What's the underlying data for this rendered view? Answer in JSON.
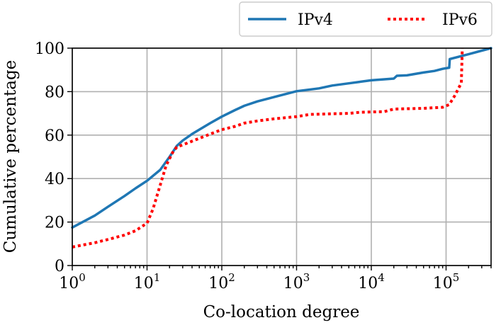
{
  "chart_data": {
    "type": "line",
    "title": "",
    "xlabel": "Co-location degree",
    "ylabel": "Cumulative percentage",
    "xscale": "log",
    "xlim": [
      1,
      400000
    ],
    "ylim": [
      0,
      100
    ],
    "grid": true,
    "legend_position": "top-right, outside above plot",
    "x_ticks": [
      {
        "base": "10",
        "exp": "0",
        "value": 1
      },
      {
        "base": "10",
        "exp": "1",
        "value": 10
      },
      {
        "base": "10",
        "exp": "2",
        "value": 100
      },
      {
        "base": "10",
        "exp": "3",
        "value": 1000
      },
      {
        "base": "10",
        "exp": "4",
        "value": 10000
      },
      {
        "base": "10",
        "exp": "5",
        "value": 100000
      }
    ],
    "y_ticks": [
      "0",
      "20",
      "40",
      "60",
      "80",
      "100"
    ],
    "series": [
      {
        "name": "IPv4",
        "color": "#1f77b4",
        "style": "solid",
        "points": [
          [
            1,
            17.5
          ],
          [
            2,
            23
          ],
          [
            3,
            27
          ],
          [
            5,
            32
          ],
          [
            7,
            35.5
          ],
          [
            10,
            39
          ],
          [
            15,
            44
          ],
          [
            20,
            50
          ],
          [
            25,
            55
          ],
          [
            30,
            57.5
          ],
          [
            40,
            60.5
          ],
          [
            50,
            62.5
          ],
          [
            70,
            65.5
          ],
          [
            100,
            68.5
          ],
          [
            150,
            71.5
          ],
          [
            200,
            73.5
          ],
          [
            300,
            75.5
          ],
          [
            500,
            77.5
          ],
          [
            700,
            78.8
          ],
          [
            1000,
            80.2
          ],
          [
            2000,
            81.5
          ],
          [
            3000,
            82.8
          ],
          [
            5000,
            83.8
          ],
          [
            7000,
            84.5
          ],
          [
            10000,
            85.2
          ],
          [
            20000,
            86
          ],
          [
            22000,
            87.3
          ],
          [
            30000,
            87.5
          ],
          [
            50000,
            88.8
          ],
          [
            70000,
            89.5
          ],
          [
            90000,
            90.5
          ],
          [
            110000,
            91
          ],
          [
            112000,
            95
          ],
          [
            200000,
            97.2
          ],
          [
            400000,
            100
          ]
        ]
      },
      {
        "name": "IPv6",
        "color": "#ff0000",
        "style": "dotted",
        "points": [
          [
            1,
            8.5
          ],
          [
            2,
            10.5
          ],
          [
            3,
            12
          ],
          [
            5,
            14
          ],
          [
            7,
            16
          ],
          [
            10,
            19.5
          ],
          [
            12,
            26
          ],
          [
            15,
            37
          ],
          [
            18,
            46
          ],
          [
            22,
            52
          ],
          [
            25,
            54.5
          ],
          [
            30,
            55.5
          ],
          [
            50,
            58.5
          ],
          [
            70,
            60.5
          ],
          [
            100,
            62.5
          ],
          [
            150,
            64
          ],
          [
            200,
            65.5
          ],
          [
            300,
            66.5
          ],
          [
            500,
            67.5
          ],
          [
            1000,
            68.5
          ],
          [
            1500,
            69.5
          ],
          [
            3000,
            69.8
          ],
          [
            5000,
            70
          ],
          [
            7000,
            70.5
          ],
          [
            15000,
            70.8
          ],
          [
            20000,
            72
          ],
          [
            50000,
            72.3
          ],
          [
            90000,
            72.8
          ],
          [
            110000,
            74
          ],
          [
            130000,
            78
          ],
          [
            160000,
            84
          ],
          [
            165000,
            100
          ]
        ]
      }
    ]
  }
}
